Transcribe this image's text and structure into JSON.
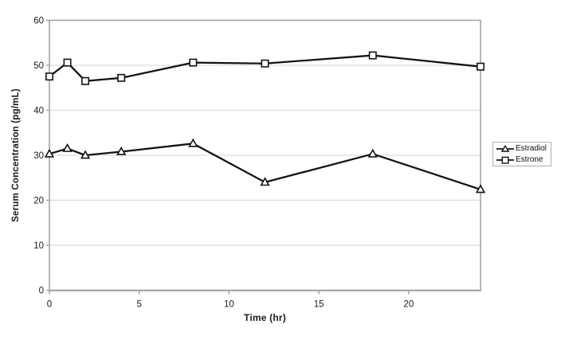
{
  "figure": {
    "xlabel": "Time (hr)",
    "ylabel": "Serum Concentration (pg/mL)"
  },
  "chart_data": {
    "type": "line",
    "title": "",
    "xlabel": "Time (hr)",
    "ylabel": "Serum Concentration (pg/mL)",
    "x": [
      0,
      1,
      2,
      4,
      8,
      12,
      18,
      24
    ],
    "series": [
      {
        "name": "Estradiol",
        "marker": "triangle",
        "values": [
          30.3,
          31.5,
          30.0,
          30.8,
          32.6,
          24.0,
          30.3,
          22.4
        ]
      },
      {
        "name": "Estrone",
        "marker": "square",
        "values": [
          47.5,
          50.6,
          46.5,
          47.2,
          50.6,
          50.4,
          52.2,
          49.7
        ]
      }
    ],
    "xlim": [
      0,
      24
    ],
    "ylim": [
      0,
      60
    ],
    "x_ticks": [
      0,
      5,
      10,
      15,
      20
    ],
    "y_ticks": [
      0,
      10,
      20,
      30,
      40,
      50,
      60
    ],
    "grid": "horizontal",
    "legend_position": "right-outside"
  },
  "style": {
    "line_color": "#141414",
    "marker_fill": "#ffffff",
    "grid_color": "#dcdcdc",
    "axis_color": "#a3a3a3",
    "tick_color": "#9e9e9e",
    "text_color": "#1a1a1a",
    "background": "#ffffff",
    "legend_border": "#b0b0b0",
    "legend_bg": "#fdfdfb"
  }
}
